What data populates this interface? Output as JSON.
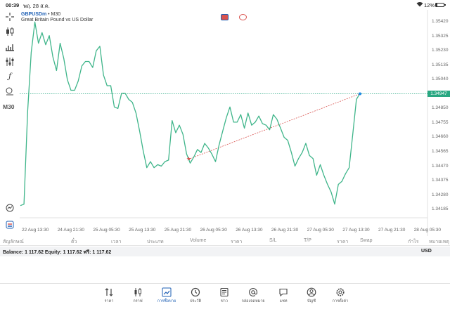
{
  "status_bar": {
    "time": "00:39",
    "date": "พฤ. 28 ส.ค.",
    "battery": "12%"
  },
  "chart": {
    "symbol": "GBPUSDm",
    "timeframe_suffix": "• M30",
    "description": "Great Britain Pound vs US Dollar",
    "timeframe": "M30",
    "current_price": "1.34947",
    "line_color": "#3fb58a",
    "price_line_color": "#28a781"
  },
  "chart_data": {
    "type": "line",
    "title": "",
    "xlabel": "",
    "ylabel": "",
    "ylim": [
      1.3413,
      1.355
    ],
    "y_ticks": [
      "1.35420",
      "1.35325",
      "1.35230",
      "1.35135",
      "1.35040",
      "1.34947",
      "1.34850",
      "1.34755",
      "1.34660",
      "1.34565",
      "1.34470",
      "1.34375",
      "1.34280",
      "1.34185"
    ],
    "x_ticks": [
      "22 Aug 13:30",
      "24 Aug 21:30",
      "25 Aug 05:30",
      "25 Aug 13:30",
      "25 Aug 21:30",
      "26 Aug 05:30",
      "26 Aug 13:30",
      "26 Aug 21:30",
      "27 Aug 05:30",
      "27 Aug 13:30",
      "27 Aug 21:30",
      "28 Aug 05:30"
    ],
    "series": [
      {
        "values": [
          1.3421,
          1.3422,
          1.3483,
          1.3522,
          1.3542,
          1.3528,
          1.3535,
          1.3527,
          1.3533,
          1.3519,
          1.351,
          1.3528,
          1.3518,
          1.3504,
          1.3497,
          1.3497,
          1.3503,
          1.3513,
          1.3516,
          1.3516,
          1.3512,
          1.3523,
          1.3526,
          1.3507,
          1.35,
          1.35,
          1.3486,
          1.3485,
          1.3495,
          1.3495,
          1.3491,
          1.3489,
          1.3482,
          1.347,
          1.3457,
          1.3446,
          1.345,
          1.3446,
          1.3448,
          1.3447,
          1.345,
          1.3451,
          1.3477,
          1.3469,
          1.3474,
          1.3468,
          1.3455,
          1.3449,
          1.3453,
          1.3458,
          1.3456,
          1.3462,
          1.3459,
          1.3455,
          1.345,
          1.3461,
          1.347,
          1.3479,
          1.3486,
          1.3476,
          1.3476,
          1.3481,
          1.3472,
          1.3482,
          1.3474,
          1.3476,
          1.348,
          1.3475,
          1.3474,
          1.3471,
          1.3481,
          1.3478,
          1.3472,
          1.3466,
          1.3464,
          1.3456,
          1.3447,
          1.3452,
          1.3456,
          1.3462,
          1.3454,
          1.3452,
          1.3441,
          1.3448,
          1.3441,
          1.3435,
          1.343,
          1.3422,
          1.3435,
          1.3437,
          1.3442,
          1.3446,
          1.3468,
          1.3491,
          1.3495
        ]
      }
    ],
    "trade_line": {
      "from": {
        "x_index": 47,
        "price": 1.3452
      },
      "to": {
        "x_index": 94,
        "price": 1.34947
      }
    }
  },
  "table_headers": [
    "สัญลักษณ์",
    "ตั๋ว",
    "เวลา",
    "ประเภท",
    "Volume",
    "ราคา",
    "S/L",
    "T/P",
    "ราคา",
    "Swap",
    "กำไร",
    "หมายเหตุ"
  ],
  "account": {
    "balance_text": "Balance: 1 117.62 Equity: 1 117.62 ฟรี: 1 117.62",
    "currency": "USD"
  },
  "nav": [
    {
      "label": "ราคา",
      "icon": "quotes-arrows-icon"
    },
    {
      "label": "กราฟ",
      "icon": "candlestick-chart-icon"
    },
    {
      "label": "การซื้อขาย",
      "icon": "trade-line-icon",
      "active": true
    },
    {
      "label": "ประวัติ",
      "icon": "history-clock-icon"
    },
    {
      "label": "ข่าว",
      "icon": "news-icon"
    },
    {
      "label": "กล่องจดหมาย",
      "icon": "mailbox-at-icon"
    },
    {
      "label": "แชท",
      "icon": "chat-bubble-icon"
    },
    {
      "label": "บัญชี",
      "icon": "account-person-icon"
    },
    {
      "label": "การตั้งค่า",
      "icon": "settings-gear-icon"
    }
  ],
  "colors": {
    "accent": "#1e5fb4",
    "line": "#3fb58a",
    "trade": "#d9534f"
  }
}
